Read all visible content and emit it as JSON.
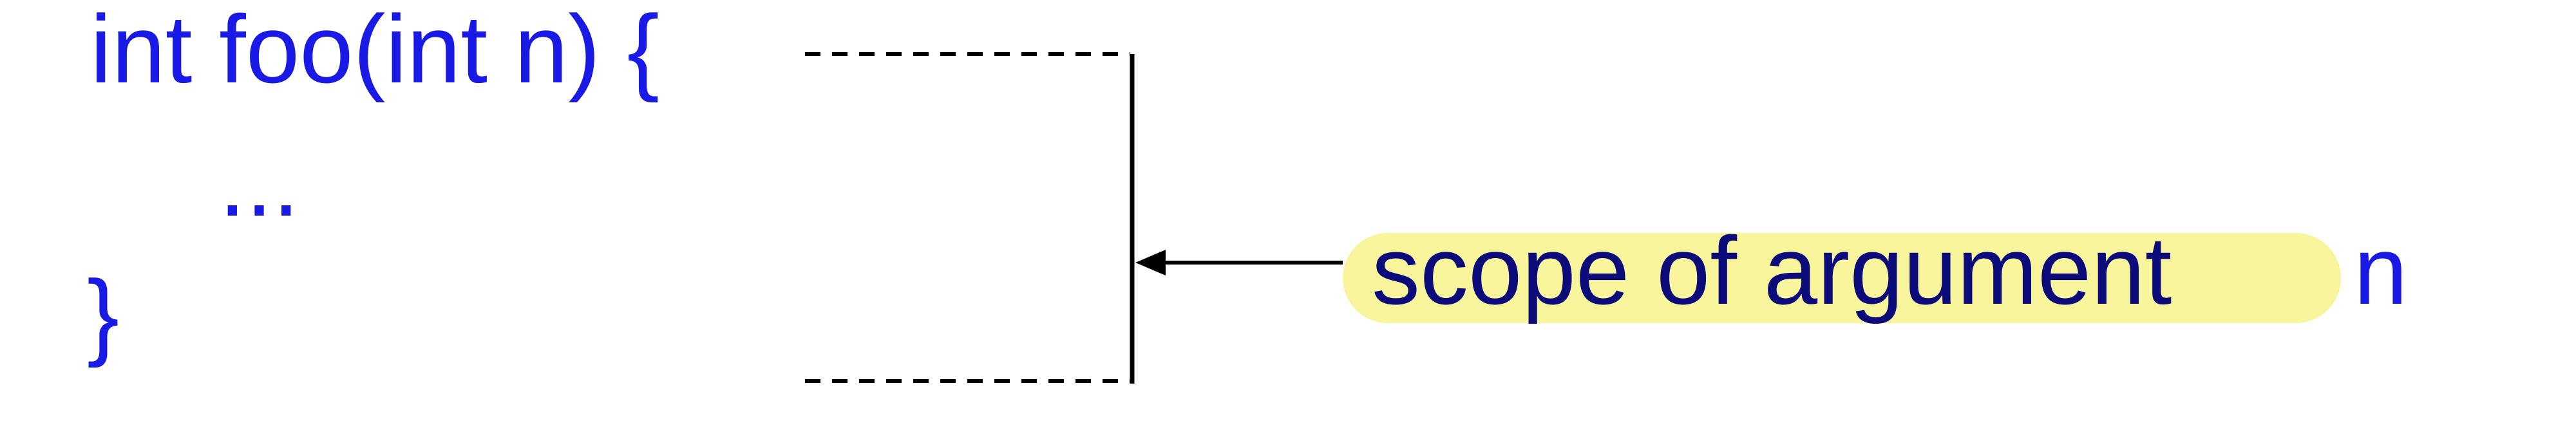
{
  "code": {
    "signature": "int foo(int n) {",
    "body": "...",
    "close": "}"
  },
  "annotation": {
    "text": "scope of argument",
    "variable": "n"
  },
  "colors": {
    "code_text": "#1a1ae6",
    "label_text": "#0b0b7a",
    "highlight": "#f8f59c",
    "lines": "#000000"
  }
}
